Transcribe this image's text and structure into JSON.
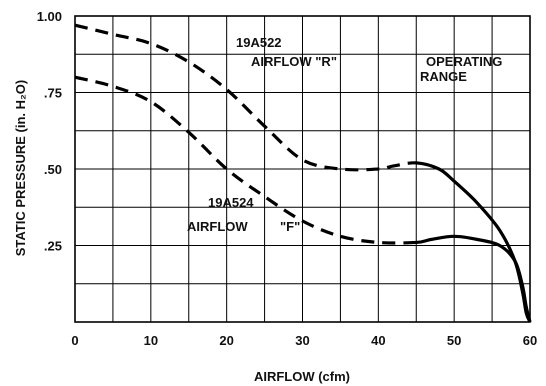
{
  "chart_data": {
    "type": "line",
    "xlabel": "AIRFLOW (cfm)",
    "ylabel": "STATIC PRESSURE (in. H₂O)",
    "xlim": [
      0,
      60
    ],
    "ylim": [
      0,
      1.0
    ],
    "x_ticks": [
      0,
      10,
      20,
      30,
      40,
      50,
      60
    ],
    "x_tick_labels": [
      "0",
      "10",
      "20",
      "30",
      "40",
      "50",
      "60"
    ],
    "y_ticks": [
      1.0,
      0.75,
      0.5,
      0.25
    ],
    "y_tick_labels": [
      "1.00",
      ".75",
      ".50",
      ".25"
    ],
    "grid": true,
    "series": [
      {
        "name": "19A522 AIRFLOW \"R\"",
        "style": "dashed-then-solid",
        "solid_from_x": 45,
        "points": [
          [
            0,
            0.97
          ],
          [
            5,
            0.94
          ],
          [
            10,
            0.91
          ],
          [
            15,
            0.85
          ],
          [
            20,
            0.76
          ],
          [
            25,
            0.64
          ],
          [
            30,
            0.53
          ],
          [
            35,
            0.5
          ],
          [
            40,
            0.5
          ],
          [
            42,
            0.51
          ],
          [
            45,
            0.52
          ],
          [
            48,
            0.5
          ],
          [
            50,
            0.46
          ],
          [
            53,
            0.39
          ],
          [
            56,
            0.3
          ],
          [
            58,
            0.2
          ],
          [
            59,
            0.1
          ],
          [
            59.5,
            0.03
          ],
          [
            60,
            0.0
          ]
        ]
      },
      {
        "name": "19A524 AIRFLOW \"F\"",
        "style": "dashed-then-solid",
        "solid_from_x": 45,
        "points": [
          [
            0,
            0.8
          ],
          [
            5,
            0.77
          ],
          [
            10,
            0.72
          ],
          [
            15,
            0.62
          ],
          [
            20,
            0.5
          ],
          [
            25,
            0.41
          ],
          [
            30,
            0.33
          ],
          [
            35,
            0.28
          ],
          [
            40,
            0.26
          ],
          [
            45,
            0.26
          ],
          [
            47,
            0.27
          ],
          [
            50,
            0.28
          ],
          [
            53,
            0.27
          ],
          [
            56,
            0.25
          ],
          [
            58,
            0.2
          ],
          [
            59,
            0.12
          ],
          [
            59.5,
            0.05
          ],
          [
            60,
            0.0
          ]
        ]
      }
    ],
    "annotations": {
      "r_part": "19A522",
      "r_label": "AIRFLOW \"R\"",
      "f_part": "19A524",
      "f_label_a": "AIRFLOW",
      "f_label_b": "\"F\"",
      "op_line1": "OPERATING",
      "op_line2": "RANGE"
    }
  }
}
